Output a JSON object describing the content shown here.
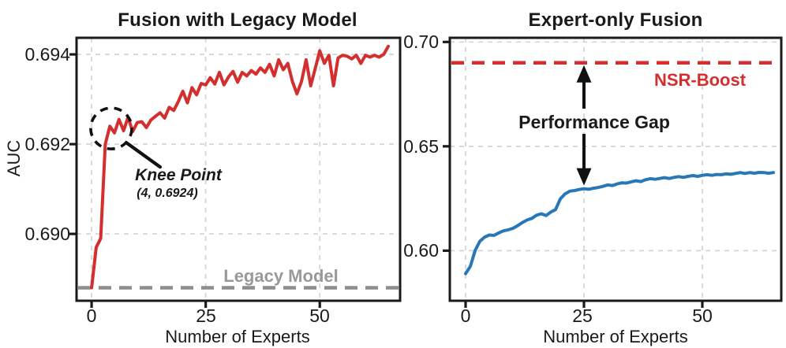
{
  "colors": {
    "red": "#d32f2e",
    "blue": "#2878b8",
    "gray": "#8e8e8e",
    "grid": "#d4d4d4",
    "axis": "#1a1a1a"
  },
  "left_panel": {
    "title": "Fusion with Legacy Model",
    "ylabel": "AUC",
    "xlabel": "Number of Experts",
    "yticks": [
      {
        "label": "0.694",
        "value": 0.694
      },
      {
        "label": "0.692",
        "value": 0.692
      },
      {
        "label": "0.690",
        "value": 0.69
      }
    ],
    "xticks": [
      {
        "label": "0",
        "value": 0
      },
      {
        "label": "25",
        "value": 25
      },
      {
        "label": "50",
        "value": 50
      }
    ],
    "legacy_label": "Legacy Model",
    "knee_label": "Knee Point",
    "knee_coords": "(4, 0.6924)"
  },
  "right_panel": {
    "title": "Expert-only Fusion",
    "xlabel": "Number of Experts",
    "yticks": [
      {
        "label": "0.70",
        "value": 0.7
      },
      {
        "label": "0.65",
        "value": 0.65
      },
      {
        "label": "0.60",
        "value": 0.6
      }
    ],
    "xticks": [
      {
        "label": "0",
        "value": 0
      },
      {
        "label": "25",
        "value": 25
      },
      {
        "label": "50",
        "value": 50
      }
    ],
    "nsr_label": "NSR-Boost",
    "gap_label": "Performance Gap"
  },
  "chart_data": [
    {
      "id": "left",
      "type": "line",
      "title": "Fusion with Legacy Model",
      "xlabel": "Number of Experts",
      "ylabel": "AUC",
      "xlim": [
        -3.3,
        67.6
      ],
      "ylim": [
        0.68851,
        0.69437
      ],
      "xticks": [
        0,
        25,
        50
      ],
      "yticks": [
        0.694,
        0.692,
        0.69
      ],
      "grid": true,
      "series": [
        {
          "name": "Fusion with Legacy Model",
          "color": "#d32f2e",
          "x": [
            0,
            1,
            2,
            3,
            4,
            5,
            6,
            7,
            8,
            9,
            10,
            11,
            12,
            13,
            14,
            15,
            16,
            17,
            18,
            19,
            20,
            21,
            22,
            23,
            24,
            25,
            26,
            27,
            28,
            29,
            30,
            31,
            32,
            33,
            34,
            35,
            36,
            37,
            38,
            39,
            40,
            41,
            42,
            43,
            44,
            45,
            46,
            47,
            48,
            49,
            50,
            51,
            52,
            53,
            54,
            55,
            56,
            57,
            58,
            59,
            60,
            61,
            62,
            63,
            64,
            65
          ],
          "y": [
            0.6888,
            0.6897,
            0.6899,
            0.692,
            0.6924,
            0.69225,
            0.69255,
            0.6923,
            0.6926,
            0.69228,
            0.69248,
            0.6925,
            0.69237,
            0.69254,
            0.69262,
            0.6927,
            0.69258,
            0.69282,
            0.69275,
            0.69295,
            0.69318,
            0.69292,
            0.69326,
            0.6931,
            0.69335,
            0.69332,
            0.69348,
            0.69334,
            0.6936,
            0.69332,
            0.6935,
            0.69362,
            0.69338,
            0.6936,
            0.69352,
            0.69364,
            0.69356,
            0.6937,
            0.6936,
            0.69378,
            0.69352,
            0.69388,
            0.69366,
            0.6938,
            0.6934,
            0.69312,
            0.6934,
            0.69388,
            0.6933,
            0.69368,
            0.69408,
            0.6938,
            0.69398,
            0.6933,
            0.69392,
            0.69398,
            0.69396,
            0.6939,
            0.69398,
            0.6938,
            0.69398,
            0.69394,
            0.69398,
            0.69394,
            0.694,
            0.69418
          ]
        }
      ],
      "reference_lines": [
        {
          "label": "Legacy Model",
          "value": 0.6888,
          "style": "dashed",
          "color": "#8e8e8e"
        }
      ],
      "annotations": [
        {
          "label": "Knee Point",
          "sublabel": "(4, 0.6924)",
          "point_x": 4,
          "point_y": 0.6924,
          "circle_center": [
            4.3,
            0.69235
          ]
        }
      ]
    },
    {
      "id": "right",
      "type": "line",
      "title": "Expert-only Fusion",
      "xlabel": "Number of Experts",
      "ylabel": "",
      "xlim": [
        -3.33,
        66.67
      ],
      "ylim": [
        0.576,
        0.702
      ],
      "xticks": [
        0,
        25,
        50
      ],
      "yticks": [
        0.7,
        0.65,
        0.6
      ],
      "grid": true,
      "series": [
        {
          "name": "Expert-only Fusion",
          "color": "#2878b8",
          "x": [
            0,
            1,
            2,
            3,
            4,
            5,
            6,
            7,
            8,
            9,
            10,
            11,
            12,
            13,
            14,
            15,
            16,
            17,
            18,
            19,
            20,
            21,
            22,
            23,
            24,
            25,
            26,
            27,
            28,
            29,
            30,
            31,
            32,
            33,
            34,
            35,
            36,
            37,
            38,
            39,
            40,
            41,
            42,
            43,
            44,
            45,
            46,
            47,
            48,
            49,
            50,
            51,
            52,
            53,
            54,
            55,
            56,
            57,
            58,
            59,
            60,
            61,
            62,
            63,
            64,
            65
          ],
          "y": [
            0.589,
            0.5925,
            0.6,
            0.6045,
            0.6065,
            0.6075,
            0.6073,
            0.6085,
            0.6095,
            0.61,
            0.6107,
            0.612,
            0.6135,
            0.6147,
            0.6155,
            0.617,
            0.6177,
            0.6168,
            0.6185,
            0.6197,
            0.6248,
            0.6272,
            0.6285,
            0.6288,
            0.6293,
            0.6297,
            0.6294,
            0.6299,
            0.6303,
            0.6308,
            0.6315,
            0.6312,
            0.632,
            0.6325,
            0.6324,
            0.633,
            0.6335,
            0.6331,
            0.634,
            0.6345,
            0.6342,
            0.6346,
            0.635,
            0.6346,
            0.6351,
            0.6355,
            0.6351,
            0.6356,
            0.636,
            0.6356,
            0.6361,
            0.6364,
            0.6361,
            0.6365,
            0.6364,
            0.6368,
            0.6366,
            0.637,
            0.6374,
            0.637,
            0.6374,
            0.6371,
            0.6375,
            0.6374,
            0.6371,
            0.6374
          ]
        }
      ],
      "reference_lines": [
        {
          "label": "NSR-Boost",
          "value": 0.69,
          "style": "dashed",
          "color": "#d32f2e"
        }
      ],
      "annotations": [
        {
          "label": "Performance Gap",
          "arrow_x": 25,
          "arrow_from": 0.69,
          "arrow_to": 0.6297
        }
      ]
    }
  ]
}
